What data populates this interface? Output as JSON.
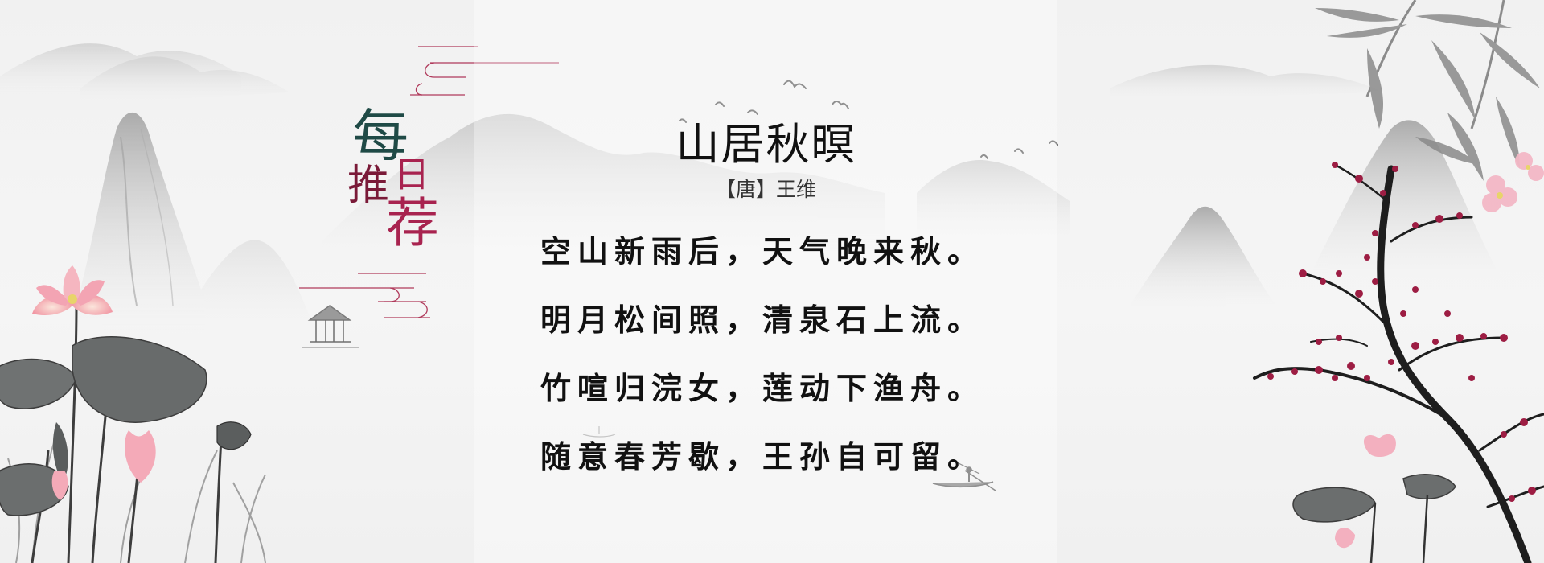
{
  "badge": {
    "chars": [
      "每",
      "日",
      "推",
      "荐"
    ],
    "colors": {
      "teal": "#1f4a46",
      "crimson": "#a8234f",
      "wine": "#7a1a38"
    }
  },
  "poem": {
    "title": "山居秋暝",
    "author": "【唐】王维",
    "lines": [
      "空山新雨后，天气晚来秋。",
      "明月松间照，清泉石上流。",
      "竹喧归浣女，莲动下渔舟。",
      "随意春芳歇，王孙自可留。"
    ]
  },
  "icons": {
    "left": "lotus-pond-icon",
    "pavilion": "pavilion-icon",
    "birds": "flying-birds-icon",
    "boat": "fishing-boat-icon",
    "right": "plum-blossom-icon",
    "bamboo": "bamboo-icon"
  }
}
